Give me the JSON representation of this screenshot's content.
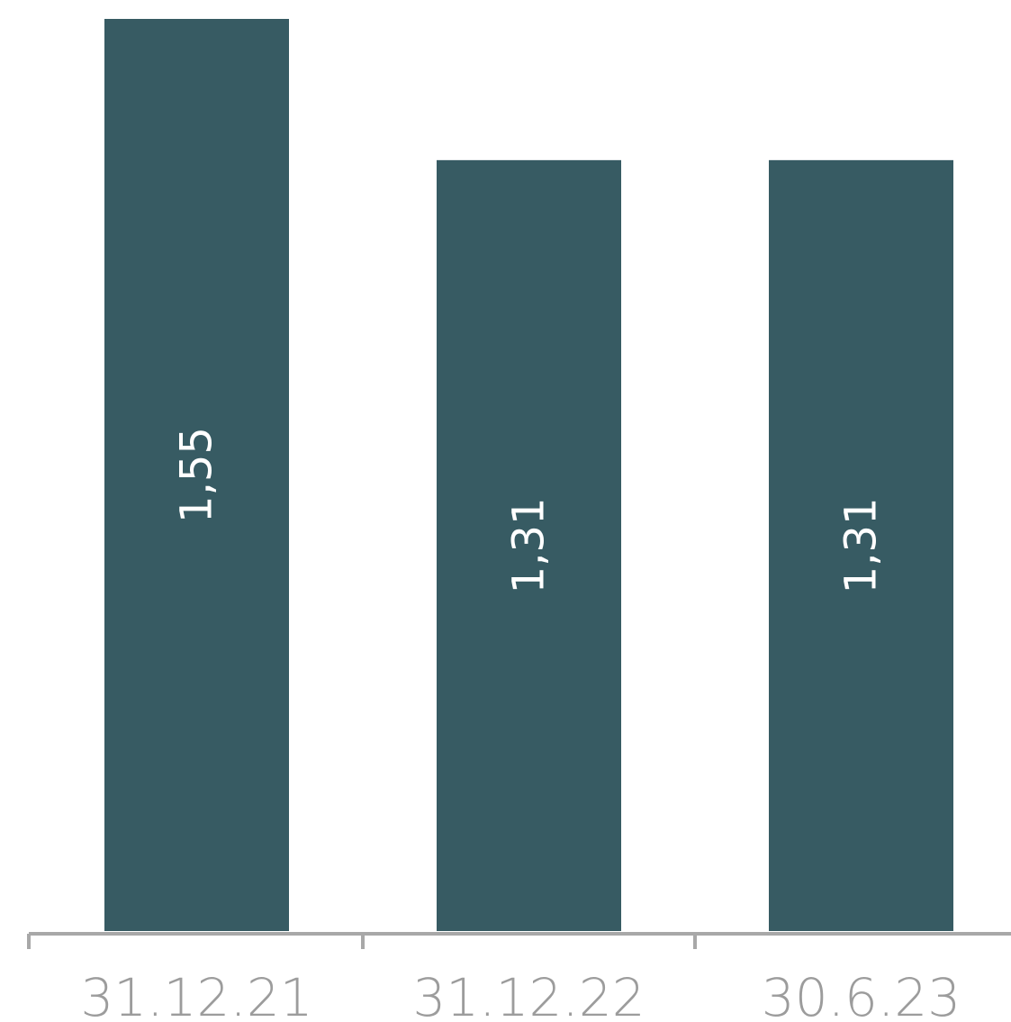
{
  "chart_data": {
    "type": "bar",
    "categories": [
      "31.12.21",
      "31.12.22",
      "30.6.23"
    ],
    "values": [
      1.55,
      1.31,
      1.31
    ],
    "value_labels": [
      "1,55",
      "1,31",
      "1,31"
    ],
    "title": "",
    "xlabel": "",
    "ylabel": "",
    "ylim": [
      0,
      1.55
    ],
    "grid": false,
    "legend": "none",
    "value_label_orientation": "rotated-vertical",
    "colors": {
      "bar": "#375b63",
      "bar_label": "#ffffff",
      "axis": "#a8a8a8",
      "tick_label": "#9c9c9c"
    }
  }
}
